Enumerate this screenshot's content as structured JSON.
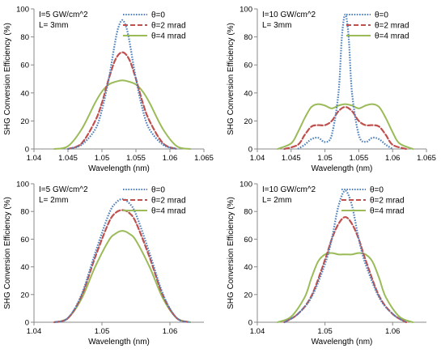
{
  "chart_data": [
    {
      "type": "line",
      "annotation": [
        "I=5 GW/cm^2",
        "L= 3mm"
      ],
      "xlabel": "Wavelength (nm)",
      "ylabel": "SHG Conversion Efficiency (%)",
      "xlim": [
        1.04,
        1.065
      ],
      "ylim": [
        0,
        100
      ],
      "xticks": [
        "1.04",
        "1.045",
        "1.05",
        "1.055",
        "1.06",
        "1.065"
      ],
      "yticks": [
        "0",
        "20",
        "40",
        "60",
        "80",
        "100"
      ],
      "legend_position": "top-right",
      "series": [
        {
          "name": "θ=0",
          "color": "#4f81bd",
          "dash": "dotted",
          "x": [
            1.045,
            1.047,
            1.049,
            1.05,
            1.051,
            1.052,
            1.0525,
            1.053,
            1.0535,
            1.054,
            1.055,
            1.056,
            1.057,
            1.059,
            1.061
          ],
          "y": [
            0,
            3,
            14,
            28,
            50,
            78,
            88,
            92,
            88,
            78,
            50,
            28,
            14,
            3,
            0
          ]
        },
        {
          "name": "θ=2 mrad",
          "color": "#c0504d",
          "dash": "dashed",
          "x": [
            1.045,
            1.047,
            1.049,
            1.05,
            1.051,
            1.052,
            1.053,
            1.054,
            1.055,
            1.056,
            1.057,
            1.059,
            1.061
          ],
          "y": [
            0,
            4,
            20,
            33,
            50,
            64,
            69,
            64,
            50,
            33,
            20,
            4,
            0
          ]
        },
        {
          "name": "θ=4 mrad",
          "color": "#9bbb59",
          "dash": "solid",
          "x": [
            1.043,
            1.045,
            1.047,
            1.049,
            1.05,
            1.051,
            1.052,
            1.053,
            1.054,
            1.055,
            1.056,
            1.057,
            1.059,
            1.061,
            1.063
          ],
          "y": [
            0,
            2,
            14,
            33,
            41,
            46,
            48,
            49,
            48,
            46,
            41,
            33,
            14,
            2,
            0
          ]
        }
      ]
    },
    {
      "type": "line",
      "annotation": [
        "I=10 GW/cm^2",
        "L= 3mm"
      ],
      "xlabel": "Wavelength (nm)",
      "ylabel": "SHG Conversion Efficiency (%)",
      "xlim": [
        1.04,
        1.065
      ],
      "ylim": [
        0,
        100
      ],
      "xticks": [
        "1.04",
        "1.045",
        "1.05",
        "1.055",
        "1.06",
        "1.065"
      ],
      "yticks": [
        "0",
        "20",
        "40",
        "60",
        "80",
        "100"
      ],
      "legend_position": "top-right",
      "series": [
        {
          "name": "θ=0",
          "color": "#4f81bd",
          "dash": "dotted",
          "x": [
            1.046,
            1.047,
            1.048,
            1.049,
            1.05,
            1.051,
            1.052,
            1.0525,
            1.053,
            1.0535,
            1.054,
            1.055,
            1.056,
            1.057,
            1.058,
            1.059,
            1.06
          ],
          "y": [
            0,
            3,
            7,
            8,
            5,
            10,
            40,
            80,
            96,
            80,
            40,
            10,
            5,
            8,
            7,
            3,
            0
          ]
        },
        {
          "name": "θ=2 mrad",
          "color": "#c0504d",
          "dash": "dashed",
          "x": [
            1.044,
            1.046,
            1.047,
            1.048,
            1.049,
            1.05,
            1.051,
            1.052,
            1.053,
            1.054,
            1.055,
            1.056,
            1.057,
            1.058,
            1.059,
            1.06,
            1.062
          ],
          "y": [
            0,
            3,
            10,
            16,
            17,
            17,
            20,
            27,
            30,
            27,
            20,
            17,
            17,
            16,
            10,
            3,
            0
          ]
        },
        {
          "name": "θ=4 mrad",
          "color": "#9bbb59",
          "dash": "solid",
          "x": [
            1.043,
            1.045,
            1.046,
            1.047,
            1.048,
            1.049,
            1.05,
            1.051,
            1.052,
            1.053,
            1.054,
            1.055,
            1.056,
            1.057,
            1.058,
            1.059,
            1.06,
            1.061,
            1.063
          ],
          "y": [
            0,
            4,
            12,
            22,
            30,
            32,
            31,
            29,
            31,
            32,
            31,
            29,
            31,
            32,
            30,
            22,
            12,
            4,
            0
          ]
        }
      ]
    },
    {
      "type": "line",
      "annotation": [
        "I=5 GW/cm^2",
        "L= 2mm"
      ],
      "xlabel": "Wavelength (nm)",
      "ylabel": "SHG Conversion Efficiency (%)",
      "xlim": [
        1.04,
        1.065
      ],
      "ylim": [
        0,
        100
      ],
      "xticks": [
        "1.04",
        "1.05",
        "1.06"
      ],
      "yticks": [
        "0",
        "20",
        "40",
        "60",
        "80",
        "100"
      ],
      "legend_position": "top-right",
      "series": [
        {
          "name": "θ=0",
          "color": "#4f81bd",
          "dash": "dotted",
          "x": [
            1.043,
            1.045,
            1.047,
            1.049,
            1.051,
            1.052,
            1.053,
            1.054,
            1.055,
            1.057,
            1.059,
            1.061,
            1.063
          ],
          "y": [
            0,
            3,
            20,
            50,
            78,
            86,
            89,
            86,
            78,
            50,
            20,
            3,
            0
          ]
        },
        {
          "name": "θ=2 mrad",
          "color": "#c0504d",
          "dash": "dashed",
          "x": [
            1.043,
            1.045,
            1.047,
            1.049,
            1.051,
            1.052,
            1.053,
            1.054,
            1.055,
            1.057,
            1.059,
            1.061,
            1.063
          ],
          "y": [
            0,
            3,
            19,
            47,
            72,
            79,
            81,
            79,
            72,
            47,
            19,
            3,
            0
          ]
        },
        {
          "name": "θ=4 mrad",
          "color": "#9bbb59",
          "dash": "solid",
          "x": [
            1.043,
            1.045,
            1.047,
            1.049,
            1.051,
            1.052,
            1.053,
            1.054,
            1.055,
            1.057,
            1.059,
            1.061,
            1.063
          ],
          "y": [
            0,
            3,
            17,
            40,
            59,
            64,
            66,
            64,
            59,
            40,
            17,
            3,
            0
          ]
        }
      ]
    },
    {
      "type": "line",
      "annotation": [
        "I=10 GW/cm^2",
        "L= 2mm"
      ],
      "xlabel": "Wavelength (nm)",
      "ylabel": "SHG Conversion Efficiency (%)",
      "xlim": [
        1.04,
        1.065
      ],
      "ylim": [
        0,
        100
      ],
      "xticks": [
        "1.04",
        "1.05",
        "1.06"
      ],
      "yticks": [
        "0",
        "20",
        "40",
        "60",
        "80",
        "100"
      ],
      "legend_position": "top-left",
      "series": [
        {
          "name": "θ=0",
          "color": "#4f81bd",
          "dash": "dotted",
          "x": [
            1.044,
            1.046,
            1.048,
            1.05,
            1.051,
            1.052,
            1.053,
            1.054,
            1.055,
            1.056,
            1.058,
            1.06,
            1.062
          ],
          "y": [
            0,
            6,
            18,
            42,
            60,
            84,
            95,
            84,
            60,
            42,
            18,
            6,
            0
          ]
        },
        {
          "name": "θ=2 mrad",
          "color": "#c0504d",
          "dash": "dashed",
          "x": [
            1.044,
            1.046,
            1.048,
            1.05,
            1.051,
            1.052,
            1.053,
            1.054,
            1.055,
            1.056,
            1.058,
            1.06,
            1.062
          ],
          "y": [
            0,
            6,
            19,
            45,
            60,
            71,
            76,
            71,
            60,
            45,
            19,
            6,
            0
          ]
        },
        {
          "name": "θ=4 mrad",
          "color": "#9bbb59",
          "dash": "solid",
          "x": [
            1.043,
            1.045,
            1.047,
            1.048,
            1.049,
            1.05,
            1.051,
            1.052,
            1.053,
            1.054,
            1.055,
            1.056,
            1.057,
            1.058,
            1.059,
            1.061,
            1.063
          ],
          "y": [
            0,
            4,
            18,
            32,
            44,
            49,
            50,
            49,
            49,
            49,
            50,
            49,
            44,
            32,
            18,
            4,
            0
          ]
        }
      ]
    }
  ]
}
